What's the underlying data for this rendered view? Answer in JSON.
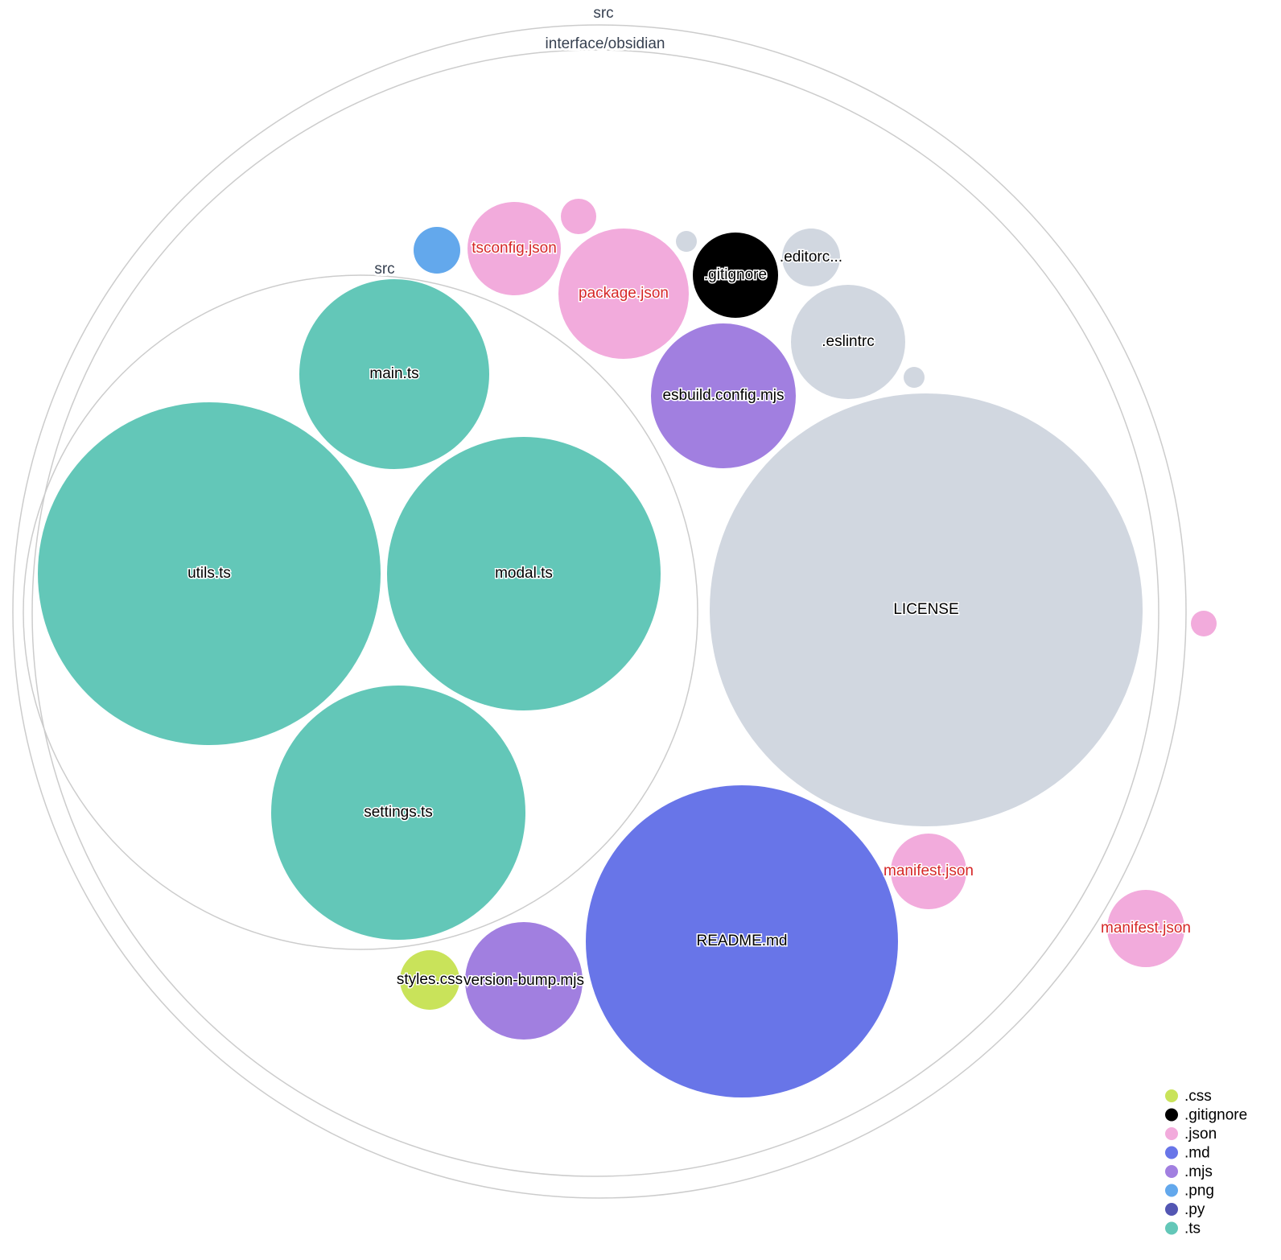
{
  "colors": {
    ".css": "#c9e35a",
    ".gitignore": "#000000",
    ".json": "#f2abdc",
    ".md": "#6875e8",
    ".mjs": "#a17fe0",
    ".png": "#63a8ec",
    ".py": "#5356b3",
    ".ts": "#63c7b8",
    "other": "#d1d7e0",
    "json_label": "#d62728",
    "default_label": "#000000"
  },
  "folders": [
    {
      "label": "src"
    },
    {
      "label": "interface/obsidian"
    },
    {
      "label": "src"
    }
  ],
  "files": [
    {
      "label": "main.ts",
      "ext": ".ts"
    },
    {
      "label": "utils.ts",
      "ext": ".ts"
    },
    {
      "label": "modal.ts",
      "ext": ".ts"
    },
    {
      "label": "settings.ts",
      "ext": ".ts"
    },
    {
      "label": "LICENSE",
      "ext": "other"
    },
    {
      "label": "README.md",
      "ext": ".md"
    },
    {
      "label": "esbuild.config.mjs",
      "ext": ".mjs"
    },
    {
      "label": ".eslintrc",
      "ext": "other"
    },
    {
      "label": ".gitignore",
      "ext": ".gitignore"
    },
    {
      "label": ".editorc...",
      "ext": "other"
    },
    {
      "label": "package.json",
      "ext": ".json"
    },
    {
      "label": "tsconfig.json",
      "ext": ".json"
    },
    {
      "label": "",
      "ext": ".png"
    },
    {
      "label": "",
      "ext": ".json"
    },
    {
      "label": "",
      "ext": "other"
    },
    {
      "label": "",
      "ext": "other"
    },
    {
      "label": "manifest.json",
      "ext": ".json"
    },
    {
      "label": "manifest.json",
      "ext": ".json"
    },
    {
      "label": "",
      "ext": ".json"
    },
    {
      "label": "styles.css",
      "ext": ".css"
    },
    {
      "label": "version-bump.mjs",
      "ext": ".mjs"
    }
  ],
  "legend": [
    ".css",
    ".gitignore",
    ".json",
    ".md",
    ".mjs",
    ".png",
    ".py",
    ".ts"
  ]
}
